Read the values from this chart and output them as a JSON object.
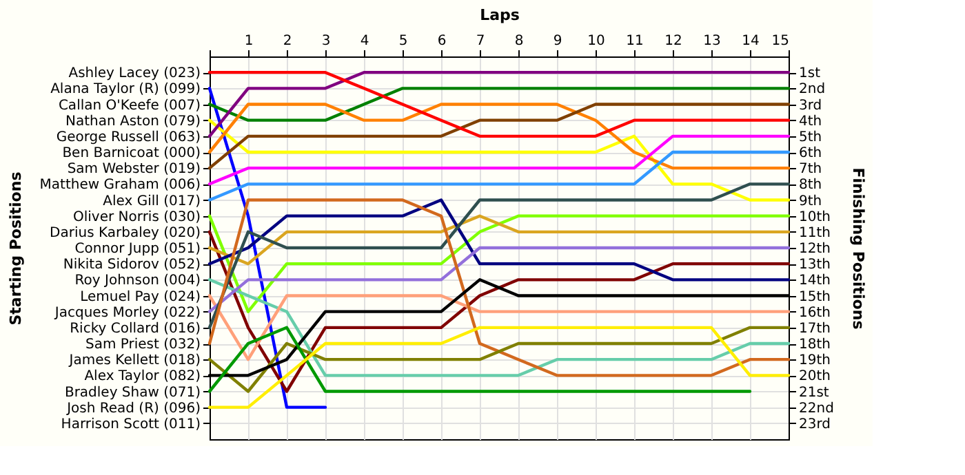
{
  "chart_data": {
    "type": "line",
    "xlabel": "Laps",
    "annotations": [
      "Starting Positions"
    ],
    "y2label": "Finishing Positions",
    "x": [
      0,
      1,
      2,
      3,
      4,
      5,
      6,
      7,
      8,
      9,
      10,
      11,
      12,
      13,
      14,
      15
    ],
    "xlim": [
      0,
      15
    ],
    "xticks": [
      {
        "value": 0,
        "label": null
      },
      1,
      2,
      3,
      4,
      5,
      6,
      7,
      8,
      9,
      10,
      11,
      12,
      13,
      14,
      15
    ],
    "y_categories": [
      "Ashley Lacey (023)",
      "Alana Taylor  (R) (099)",
      "Callan O'Keefe (007)",
      "Nathan Aston (079)",
      "George Russell (063)",
      "Ben Barnicoat (000)",
      "Sam Webster (019)",
      "Matthew Graham (006)",
      "Alex Gill (017)",
      "Oliver Norris (030)",
      "Darius Karbaley (020)",
      "Connor Jupp (051)",
      "Nikita Sidorov (052)",
      "Roy Johnson (004)",
      "Lemuel Pay (024)",
      "Jacques Morley (022)",
      "Ricky Collard (016)",
      "Sam Priest (032)",
      "James Kellett (018)",
      "Alex Taylor (082)",
      "Bradley Shaw (071)",
      "Josh Read  (R) (096)",
      "Harrison Scott (011)"
    ],
    "y2lim": [
      24,
      0
    ],
    "y2ticks": [
      {
        "value": 1,
        "label": "1st"
      },
      {
        "value": 2,
        "label": "2nd"
      },
      {
        "value": 3,
        "label": "3rd"
      },
      {
        "value": 4,
        "label": "4th"
      },
      {
        "value": 5,
        "label": "5th"
      },
      {
        "value": 6,
        "label": "6th"
      },
      {
        "value": 7,
        "label": "7th"
      },
      {
        "value": 8,
        "label": "8th"
      },
      {
        "value": 9,
        "label": "9th"
      },
      {
        "value": 10,
        "label": "10th"
      },
      {
        "value": 11,
        "label": "11th"
      },
      {
        "value": 12,
        "label": "12th"
      },
      {
        "value": 13,
        "label": "13th"
      },
      {
        "value": 14,
        "label": "14th"
      },
      {
        "value": 15,
        "label": "15th"
      },
      {
        "value": 16,
        "label": "16th"
      },
      {
        "value": 17,
        "label": "17th"
      },
      {
        "value": 18,
        "label": "18th"
      },
      {
        "value": 19,
        "label": "19th"
      },
      {
        "value": 20,
        "label": "20th"
      },
      {
        "value": 21,
        "label": "21st"
      },
      {
        "value": 22,
        "label": "22nd"
      },
      {
        "value": 23,
        "label": "23rd"
      }
    ],
    "grid": true,
    "legend": false,
    "marker": "none",
    "line_style": "solid",
    "series": [
      {
        "axis": "y2",
        "color": "#ff0000",
        "values": [
          1,
          1,
          1,
          1,
          2,
          3,
          4,
          5,
          5,
          5,
          5,
          4,
          4,
          4,
          4,
          4
        ]
      },
      {
        "axis": "y2",
        "color": "#0000ff",
        "values": [
          2,
          10,
          22,
          22,
          null,
          null,
          null,
          null,
          null,
          null,
          null,
          null,
          null,
          null,
          null,
          null
        ]
      },
      {
        "axis": "y2",
        "color": "#008000",
        "values": [
          3,
          4,
          4,
          4,
          3,
          2,
          2,
          2,
          2,
          2,
          2,
          2,
          2,
          2,
          2,
          2
        ]
      },
      {
        "axis": "y2",
        "color": "#ffff00",
        "values": [
          4,
          6,
          6,
          6,
          6,
          6,
          6,
          6,
          6,
          6,
          6,
          5,
          8,
          8,
          9,
          9
        ]
      },
      {
        "axis": "y2",
        "color": "#800080",
        "values": [
          5,
          2,
          2,
          2,
          1,
          1,
          1,
          1,
          1,
          1,
          1,
          1,
          1,
          1,
          1,
          1
        ]
      },
      {
        "axis": "y2",
        "color": "#ff8000",
        "values": [
          6,
          3,
          3,
          3,
          4,
          4,
          3,
          3,
          3,
          3,
          4,
          6,
          7,
          7,
          7,
          7
        ]
      },
      {
        "axis": "y2",
        "color": "#804000",
        "values": [
          7,
          5,
          5,
          5,
          5,
          5,
          5,
          4,
          4,
          4,
          3,
          3,
          3,
          3,
          3,
          3
        ]
      },
      {
        "axis": "y2",
        "color": "#ff00ff",
        "values": [
          8,
          7,
          7,
          7,
          7,
          7,
          7,
          7,
          7,
          7,
          7,
          7,
          5,
          5,
          5,
          5
        ]
      },
      {
        "axis": "y2",
        "color": "#3399ff",
        "values": [
          9,
          8,
          8,
          8,
          8,
          8,
          8,
          8,
          8,
          8,
          8,
          8,
          6,
          6,
          6,
          6
        ]
      },
      {
        "axis": "y2",
        "color": "#80ff00",
        "values": [
          10,
          16,
          13,
          13,
          13,
          13,
          13,
          11,
          10,
          10,
          10,
          10,
          10,
          10,
          10,
          10
        ]
      },
      {
        "axis": "y2",
        "color": "#800000",
        "values": [
          11,
          17,
          21,
          17,
          17,
          17,
          17,
          15,
          14,
          14,
          14,
          14,
          13,
          13,
          13,
          13
        ]
      },
      {
        "axis": "y2",
        "color": "#daa520",
        "values": [
          12,
          13,
          11,
          11,
          11,
          11,
          11,
          10,
          11,
          11,
          11,
          11,
          11,
          11,
          11,
          11
        ]
      },
      {
        "axis": "y2",
        "color": "#000080",
        "values": [
          13,
          12,
          10,
          10,
          10,
          10,
          9,
          13,
          13,
          13,
          13,
          13,
          14,
          14,
          14,
          14
        ]
      },
      {
        "axis": "y2",
        "color": "#66cdaa",
        "values": [
          14,
          15,
          16,
          20,
          20,
          20,
          20,
          20,
          20,
          19,
          19,
          19,
          19,
          19,
          18,
          18
        ]
      },
      {
        "axis": "y2",
        "color": "#ffa07a",
        "values": [
          15,
          19,
          15,
          15,
          15,
          15,
          15,
          16,
          16,
          16,
          16,
          16,
          16,
          16,
          16,
          16
        ]
      },
      {
        "axis": "y2",
        "color": "#9370db",
        "values": [
          16,
          14,
          14,
          14,
          14,
          14,
          14,
          12,
          12,
          12,
          12,
          12,
          12,
          12,
          12,
          12
        ]
      },
      {
        "axis": "y2",
        "color": "#2f4f4f",
        "values": [
          17,
          11,
          12,
          12,
          12,
          12,
          12,
          9,
          9,
          9,
          9,
          9,
          9,
          9,
          8,
          8
        ]
      },
      {
        "axis": "y2",
        "color": "#d2691e",
        "values": [
          18,
          9,
          9,
          9,
          9,
          9,
          10,
          18,
          19,
          20,
          20,
          20,
          20,
          20,
          19,
          19
        ]
      },
      {
        "axis": "y2",
        "color": "#808000",
        "values": [
          19,
          21,
          18,
          19,
          19,
          19,
          19,
          19,
          18,
          18,
          18,
          18,
          18,
          18,
          17,
          17
        ]
      },
      {
        "axis": "y2",
        "color": "#000000",
        "values": [
          20,
          20,
          19,
          16,
          16,
          16,
          16,
          14,
          15,
          15,
          15,
          15,
          15,
          15,
          15,
          15
        ]
      },
      {
        "axis": "y2",
        "color": "#009900",
        "values": [
          21,
          18,
          17,
          21,
          21,
          21,
          21,
          21,
          21,
          21,
          21,
          21,
          21,
          21,
          21,
          null
        ]
      },
      {
        "axis": "y2",
        "color": "#ffee00",
        "values": [
          22,
          22,
          20,
          18,
          18,
          18,
          18,
          17,
          17,
          17,
          17,
          17,
          17,
          17,
          20,
          20
        ]
      }
    ]
  }
}
